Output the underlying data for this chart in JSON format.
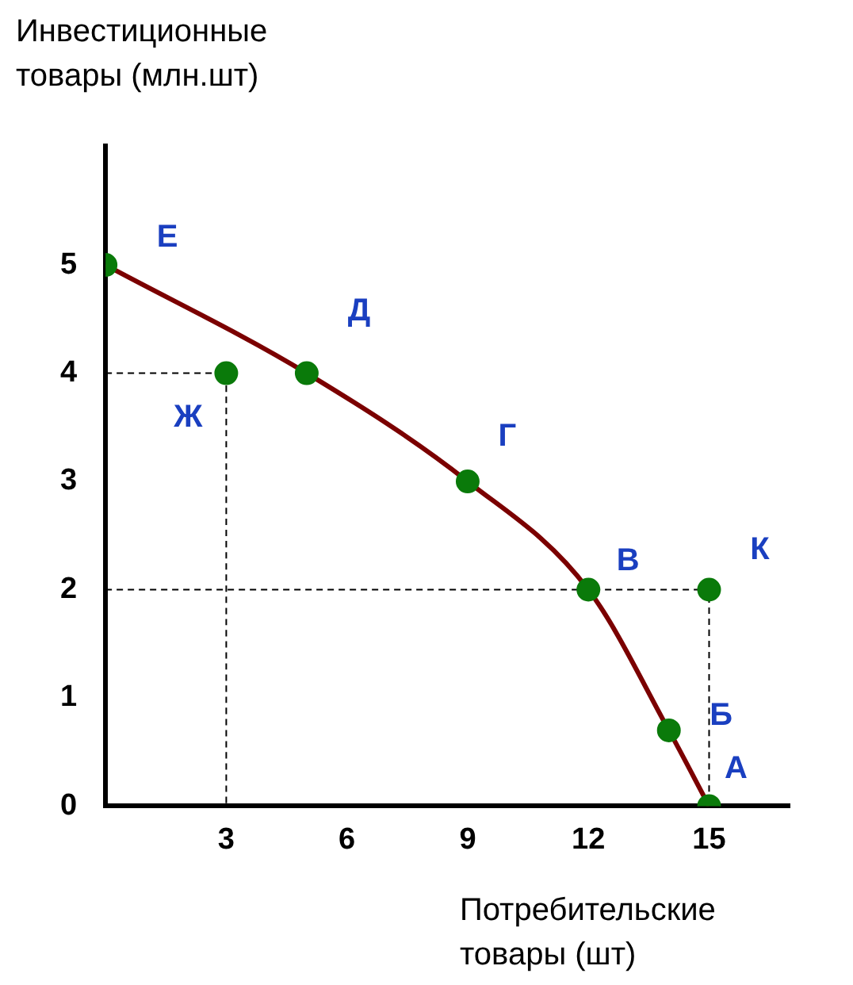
{
  "chart_data": {
    "type": "line",
    "xlabel": "Потребительские товары (шт)",
    "ylabel": "Инвестиционные товары (млн.шт)",
    "xlim": [
      0,
      17
    ],
    "ylim": [
      0,
      6.1
    ],
    "xticks": [
      3,
      6,
      9,
      12,
      15
    ],
    "yticks": [
      0,
      1,
      2,
      3,
      4,
      5
    ],
    "grid": false,
    "legend": false,
    "series": [
      {
        "color": "#000000",
        "line_style": "dashed",
        "marker": "none",
        "x": [
          0,
          3,
          3
        ],
        "values": [
          4,
          4,
          0
        ]
      },
      {
        "color": "#000000",
        "line_style": "dashed",
        "marker": "none",
        "x": [
          0,
          15,
          15
        ],
        "values": [
          2,
          2,
          0
        ]
      },
      {
        "color": "#7b0000",
        "line_style": "solid",
        "marker": "none",
        "x": [
          0,
          5,
          9,
          12,
          14,
          15
        ],
        "values": [
          5,
          4,
          3,
          2,
          0.7,
          0
        ]
      },
      {
        "type": "scatter",
        "color": "#0a7a0a",
        "marker": "circle",
        "x": [
          0,
          3,
          5,
          9,
          12,
          14,
          15,
          15
        ],
        "values": [
          5,
          4,
          4,
          3,
          2,
          0.7,
          0,
          2
        ]
      }
    ],
    "annotations": [
      {
        "text": "Е",
        "x": 0,
        "y": 5
      },
      {
        "text": "Ж",
        "x": 3,
        "y": 4
      },
      {
        "text": "Д",
        "x": 5,
        "y": 4
      },
      {
        "text": "Г",
        "x": 9,
        "y": 3
      },
      {
        "text": "В",
        "x": 12,
        "y": 2
      },
      {
        "text": "К",
        "x": 15,
        "y": 2
      },
      {
        "text": "Б",
        "x": 14,
        "y": 0.7
      },
      {
        "text": "А",
        "x": 15,
        "y": 0
      }
    ]
  }
}
